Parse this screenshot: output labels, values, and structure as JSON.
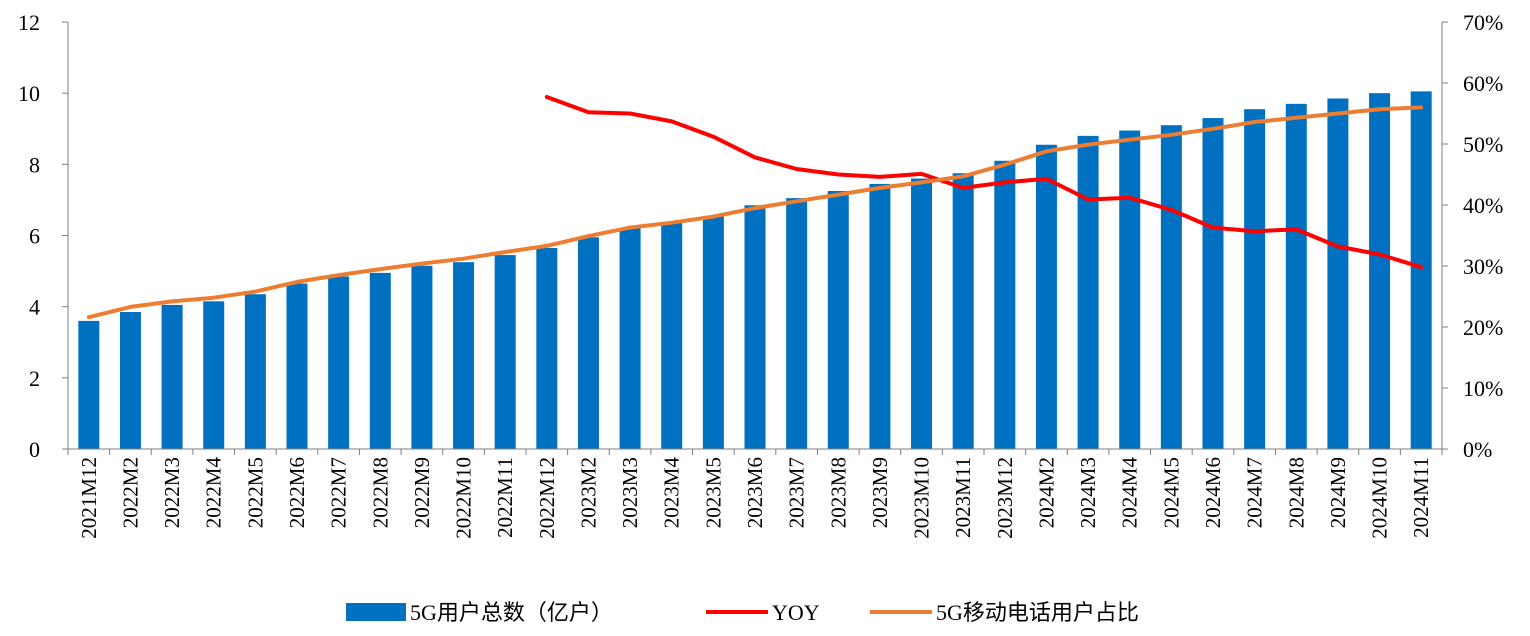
{
  "chart_data": {
    "type": "bar",
    "categories": [
      "2021M12",
      "2022M2",
      "2022M3",
      "2022M4",
      "2022M5",
      "2022M6",
      "2022M7",
      "2022M8",
      "2022M9",
      "2022M10",
      "2022M11",
      "2022M12",
      "2023M2",
      "2023M3",
      "2023M4",
      "2023M5",
      "2023M6",
      "2023M7",
      "2023M8",
      "2023M9",
      "2023M10",
      "2023M11",
      "2023M12",
      "2024M2",
      "2024M3",
      "2024M4",
      "2024M5",
      "2024M6",
      "2024M7",
      "2024M8",
      "2024M9",
      "2024M10",
      "2024M11"
    ],
    "series": [
      {
        "name": "5G用户总数（亿户）",
        "type": "bar",
        "axis": "left",
        "color": "#0070C0",
        "values": [
          3.6,
          3.85,
          4.05,
          4.15,
          4.35,
          4.65,
          4.85,
          4.95,
          5.15,
          5.25,
          5.45,
          5.65,
          5.95,
          6.2,
          6.35,
          6.55,
          6.85,
          7.05,
          7.25,
          7.45,
          7.6,
          7.75,
          8.1,
          8.55,
          8.8,
          8.95,
          9.1,
          9.3,
          9.55,
          9.7,
          9.85,
          10.0,
          10.05
        ]
      },
      {
        "name": "YOY",
        "type": "line",
        "axis": "right",
        "color": "#FF0000",
        "values": [
          null,
          null,
          null,
          null,
          null,
          null,
          null,
          null,
          null,
          null,
          null,
          57.7,
          55.2,
          55.0,
          53.7,
          51.2,
          47.8,
          45.9,
          45.0,
          44.6,
          45.1,
          42.8,
          43.7,
          44.3,
          40.9,
          41.2,
          39.2,
          36.3,
          35.7,
          36.0,
          33.2,
          31.9,
          29.8
        ]
      },
      {
        "name": "5G移动电话用户占比",
        "type": "line",
        "axis": "right",
        "color": "#ED7D31",
        "values": [
          21.6,
          23.3,
          24.2,
          24.8,
          25.8,
          27.4,
          28.5,
          29.5,
          30.4,
          31.2,
          32.3,
          33.3,
          34.9,
          36.3,
          37.1,
          38.1,
          39.5,
          40.6,
          41.7,
          42.8,
          43.7,
          44.7,
          46.6,
          48.8,
          49.9,
          50.7,
          51.5,
          52.5,
          53.6,
          54.3,
          55.0,
          55.7,
          56.0
        ]
      }
    ],
    "y_left": {
      "ylim": [
        0,
        12
      ],
      "ticks": [
        "0",
        "2",
        "4",
        "6",
        "8",
        "10",
        "12"
      ]
    },
    "y_right": {
      "ylim": [
        0,
        70
      ],
      "ticks": [
        "0%",
        "10%",
        "20%",
        "30%",
        "40%",
        "50%",
        "60%",
        "70%"
      ]
    },
    "grid": false,
    "legend_position": "bottom"
  }
}
